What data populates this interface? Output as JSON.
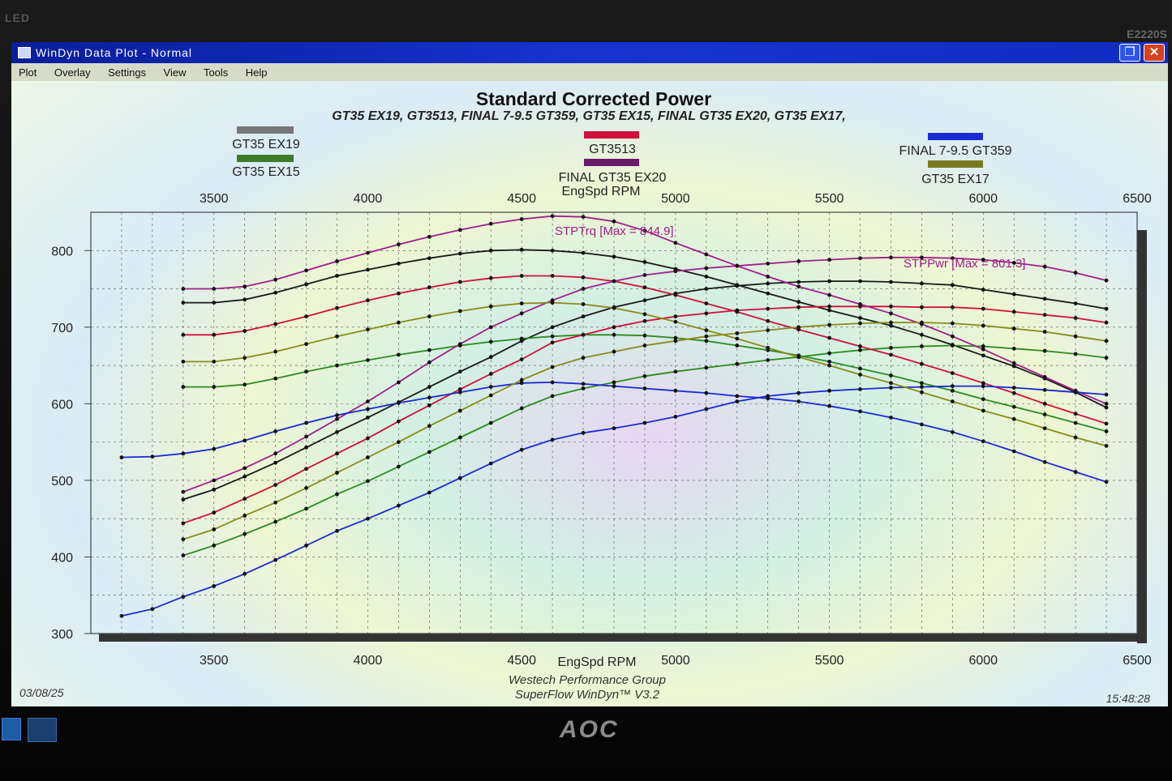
{
  "bezel": {
    "left_label": "LED",
    "model": "E2220S",
    "brand": "AOC"
  },
  "window": {
    "title": "WinDyn Data Plot - Normal"
  },
  "menu": [
    "Plot",
    "Overlay",
    "Settings",
    "View",
    "Tools",
    "Help"
  ],
  "footer": {
    "date": "03/08/25",
    "time": "15:48:28",
    "company": "Westech Performance Group",
    "software": "SuperFlow WinDyn™ V3.2"
  },
  "chart_data": {
    "type": "line",
    "title": "Standard Corrected Power",
    "subtitle": "GT35 EX19, GT3513, FINAL 7-9.5 GT359, GT35 EX15, FINAL GT35 EX20, GT35 EX17,",
    "xlabel": "EngSpd RPM",
    "top_xlabel": "EngSpd RPM",
    "xlim": [
      3100,
      6500
    ],
    "ylim": [
      300,
      850
    ],
    "x_ticks": [
      "3500",
      "4000",
      "4500",
      "5000",
      "5500",
      "6000",
      "6500"
    ],
    "y_ticks": [
      "300",
      "400",
      "500",
      "600",
      "700",
      "800"
    ],
    "grid": true,
    "annotations": {
      "torque_max": "STPTrq [Max = 844.9]",
      "power_max": "STPPwr [Max = 801.3]"
    },
    "legend": [
      "GT35 EX19",
      "GT35 EX15",
      "GT3513",
      "FINAL GT35 EX20",
      "FINAL 7-9.5 GT359",
      "GT35 EX17"
    ],
    "series": [
      {
        "name": "GT35 EX19",
        "color": "#1a1a1a",
        "torque_x": [
          3400,
          3500,
          3600,
          3700,
          3800,
          3900,
          4000,
          4100,
          4200,
          4300,
          4400,
          4500,
          4600,
          4700,
          4800,
          4900,
          5000,
          5100,
          5200,
          5300,
          5400,
          5500,
          5600,
          5700,
          5800,
          5900,
          6000,
          6100,
          6200,
          6300,
          6400
        ],
        "torque": [
          732,
          732,
          736,
          745,
          756,
          767,
          775,
          783,
          790,
          796,
          800,
          801,
          800,
          797,
          792,
          785,
          776,
          766,
          755,
          744,
          733,
          722,
          712,
          702,
          690,
          677,
          663,
          649,
          633,
          615,
          595
        ],
        "power_x": [
          3400,
          3500,
          3600,
          3700,
          3800,
          3900,
          4000,
          4100,
          4200,
          4300,
          4400,
          4500,
          4600,
          4700,
          4800,
          4900,
          5000,
          5100,
          5200,
          5300,
          5400,
          5500,
          5600,
          5700,
          5800,
          5900,
          6000,
          6100,
          6200,
          6300,
          6400
        ],
        "power": [
          475,
          488,
          505,
          523,
          543,
          563,
          582,
          602,
          622,
          642,
          661,
          682,
          700,
          714,
          726,
          735,
          744,
          750,
          754,
          757,
          759,
          760,
          760,
          759,
          757,
          755,
          749,
          743,
          737,
          731,
          724
        ]
      },
      {
        "name": "GT35 EX15",
        "color": "#2e8b22",
        "torque_x": [
          3400,
          3500,
          3600,
          3700,
          3800,
          3900,
          4000,
          4100,
          4200,
          4300,
          4400,
          4500,
          4600,
          4700,
          4800,
          4900,
          5000,
          5100,
          5200,
          5300,
          5400,
          5500,
          5600,
          5700,
          5800,
          5900,
          6000,
          6100,
          6200,
          6300,
          6400
        ],
        "torque": [
          622,
          622,
          625,
          633,
          642,
          650,
          657,
          664,
          670,
          676,
          681,
          685,
          688,
          690,
          690,
          689,
          686,
          682,
          676,
          670,
          663,
          655,
          646,
          637,
          627,
          617,
          606,
          596,
          586,
          575,
          564
        ],
        "power_x": [
          3400,
          3500,
          3600,
          3700,
          3800,
          3900,
          4000,
          4100,
          4200,
          4300,
          4400,
          4500,
          4600,
          4700,
          4800,
          4900,
          5000,
          5100,
          5200,
          5300,
          5400,
          5500,
          5600,
          5700,
          5800,
          5900,
          6000,
          6100,
          6200,
          6300,
          6400
        ],
        "power": [
          402,
          415,
          430,
          446,
          463,
          482,
          499,
          518,
          537,
          556,
          575,
          594,
          610,
          620,
          628,
          636,
          642,
          647,
          652,
          657,
          661,
          666,
          670,
          673,
          675,
          676,
          675,
          672,
          669,
          665,
          660
        ]
      },
      {
        "name": "GT3513",
        "color": "#d0103a",
        "torque_x": [
          3400,
          3500,
          3600,
          3700,
          3800,
          3900,
          4000,
          4100,
          4200,
          4300,
          4400,
          4500,
          4600,
          4700,
          4800,
          4900,
          5000,
          5100,
          5200,
          5300,
          5400,
          5500,
          5600,
          5700,
          5800,
          5900,
          6000,
          6100,
          6200,
          6300,
          6400
        ],
        "torque": [
          690,
          690,
          695,
          704,
          714,
          725,
          735,
          744,
          752,
          759,
          764,
          767,
          767,
          765,
          760,
          752,
          742,
          731,
          720,
          708,
          697,
          686,
          675,
          664,
          652,
          640,
          627,
          614,
          600,
          587,
          574
        ],
        "power_x": [
          3400,
          3500,
          3600,
          3700,
          3800,
          3900,
          4000,
          4100,
          4200,
          4300,
          4400,
          4500,
          4600,
          4700,
          4800,
          4900,
          5000,
          5100,
          5200,
          5300,
          5400,
          5500,
          5600,
          5700,
          5800,
          5900,
          6000,
          6100,
          6200,
          6300,
          6400
        ],
        "power": [
          444,
          458,
          476,
          494,
          515,
          535,
          555,
          577,
          598,
          619,
          639,
          658,
          680,
          690,
          700,
          708,
          714,
          718,
          722,
          724,
          726,
          727,
          727,
          727,
          726,
          726,
          724,
          720,
          716,
          712,
          706
        ]
      },
      {
        "name": "FINAL GT35 EX20",
        "color": "#a0208a",
        "torque_x": [
          3400,
          3500,
          3600,
          3700,
          3800,
          3900,
          4000,
          4100,
          4200,
          4300,
          4400,
          4500,
          4600,
          4700,
          4800,
          4900,
          5000,
          5100,
          5200,
          5300,
          5400,
          5500,
          5600,
          5700,
          5800,
          5900,
          6000,
          6100,
          6200,
          6300,
          6400
        ],
        "torque": [
          750,
          750,
          753,
          762,
          774,
          786,
          797,
          808,
          818,
          827,
          835,
          841,
          845,
          844,
          838,
          826,
          810,
          795,
          780,
          766,
          753,
          742,
          730,
          718,
          704,
          688,
          671,
          653,
          635,
          617,
          600
        ],
        "power_x": [
          3400,
          3500,
          3600,
          3700,
          3800,
          3900,
          4000,
          4100,
          4200,
          4300,
          4400,
          4500,
          4600,
          4700,
          4800,
          4900,
          5000,
          5100,
          5200,
          5300,
          5400,
          5500,
          5600,
          5700,
          5800,
          5900,
          6000,
          6100,
          6200,
          6300,
          6400
        ],
        "power": [
          485,
          500,
          516,
          535,
          557,
          580,
          603,
          628,
          654,
          678,
          700,
          718,
          735,
          750,
          760,
          768,
          773,
          777,
          780,
          783,
          786,
          788,
          790,
          791,
          791,
          790,
          788,
          784,
          779,
          771,
          761
        ]
      },
      {
        "name": "FINAL 7-9.5 GT359",
        "color": "#1a2ad0",
        "torque_x": [
          3200,
          3300,
          3400,
          3500,
          3600,
          3700,
          3800,
          3900,
          4000,
          4100,
          4200,
          4300,
          4400,
          4500,
          4600,
          4700,
          4800,
          4900,
          5000,
          5100,
          5200,
          5300,
          5400,
          5500,
          5600,
          5700,
          5800,
          5900,
          6000,
          6100,
          6200,
          6300,
          6400
        ],
        "torque": [
          530,
          531,
          535,
          541,
          552,
          564,
          575,
          585,
          593,
          601,
          608,
          615,
          622,
          627,
          628,
          626,
          623,
          620,
          617,
          614,
          610,
          607,
          603,
          597,
          590,
          582,
          573,
          563,
          551,
          538,
          524,
          511,
          498
        ],
        "power_x": [
          3200,
          3300,
          3400,
          3500,
          3600,
          3700,
          3800,
          3900,
          4000,
          4100,
          4200,
          4300,
          4400,
          4500,
          4600,
          4700,
          4800,
          4900,
          5000,
          5100,
          5200,
          5300,
          5400,
          5500,
          5600,
          5700,
          5800,
          5900,
          6000,
          6100,
          6200,
          6300,
          6400
        ],
        "power": [
          323,
          332,
          348,
          362,
          378,
          396,
          415,
          434,
          450,
          467,
          484,
          503,
          522,
          540,
          553,
          562,
          568,
          575,
          583,
          593,
          603,
          610,
          614,
          617,
          619,
          621,
          622,
          623,
          623,
          621,
          618,
          615,
          612
        ]
      },
      {
        "name": "GT35 EX17",
        "color": "#8a8a1a",
        "torque_x": [
          3400,
          3500,
          3600,
          3700,
          3800,
          3900,
          4000,
          4100,
          4200,
          4300,
          4400,
          4500,
          4600,
          4700,
          4800,
          4900,
          5000,
          5100,
          5200,
          5300,
          5400,
          5500,
          5600,
          5700,
          5800,
          5900,
          6000,
          6100,
          6200,
          6300,
          6400
        ],
        "torque": [
          655,
          655,
          660,
          668,
          678,
          688,
          697,
          706,
          714,
          721,
          727,
          731,
          732,
          730,
          725,
          717,
          707,
          696,
          685,
          673,
          661,
          650,
          638,
          627,
          615,
          603,
          591,
          580,
          568,
          556,
          545
        ],
        "power_x": [
          3400,
          3500,
          3600,
          3700,
          3800,
          3900,
          4000,
          4100,
          4200,
          4300,
          4400,
          4500,
          4600,
          4700,
          4800,
          4900,
          5000,
          5100,
          5200,
          5300,
          5400,
          5500,
          5600,
          5700,
          5800,
          5900,
          6000,
          6100,
          6200,
          6300,
          6400
        ],
        "power": [
          423,
          436,
          454,
          471,
          490,
          510,
          530,
          550,
          571,
          591,
          611,
          631,
          648,
          660,
          668,
          676,
          682,
          688,
          692,
          696,
          700,
          703,
          705,
          706,
          706,
          705,
          702,
          698,
          694,
          688,
          682
        ]
      }
    ]
  }
}
